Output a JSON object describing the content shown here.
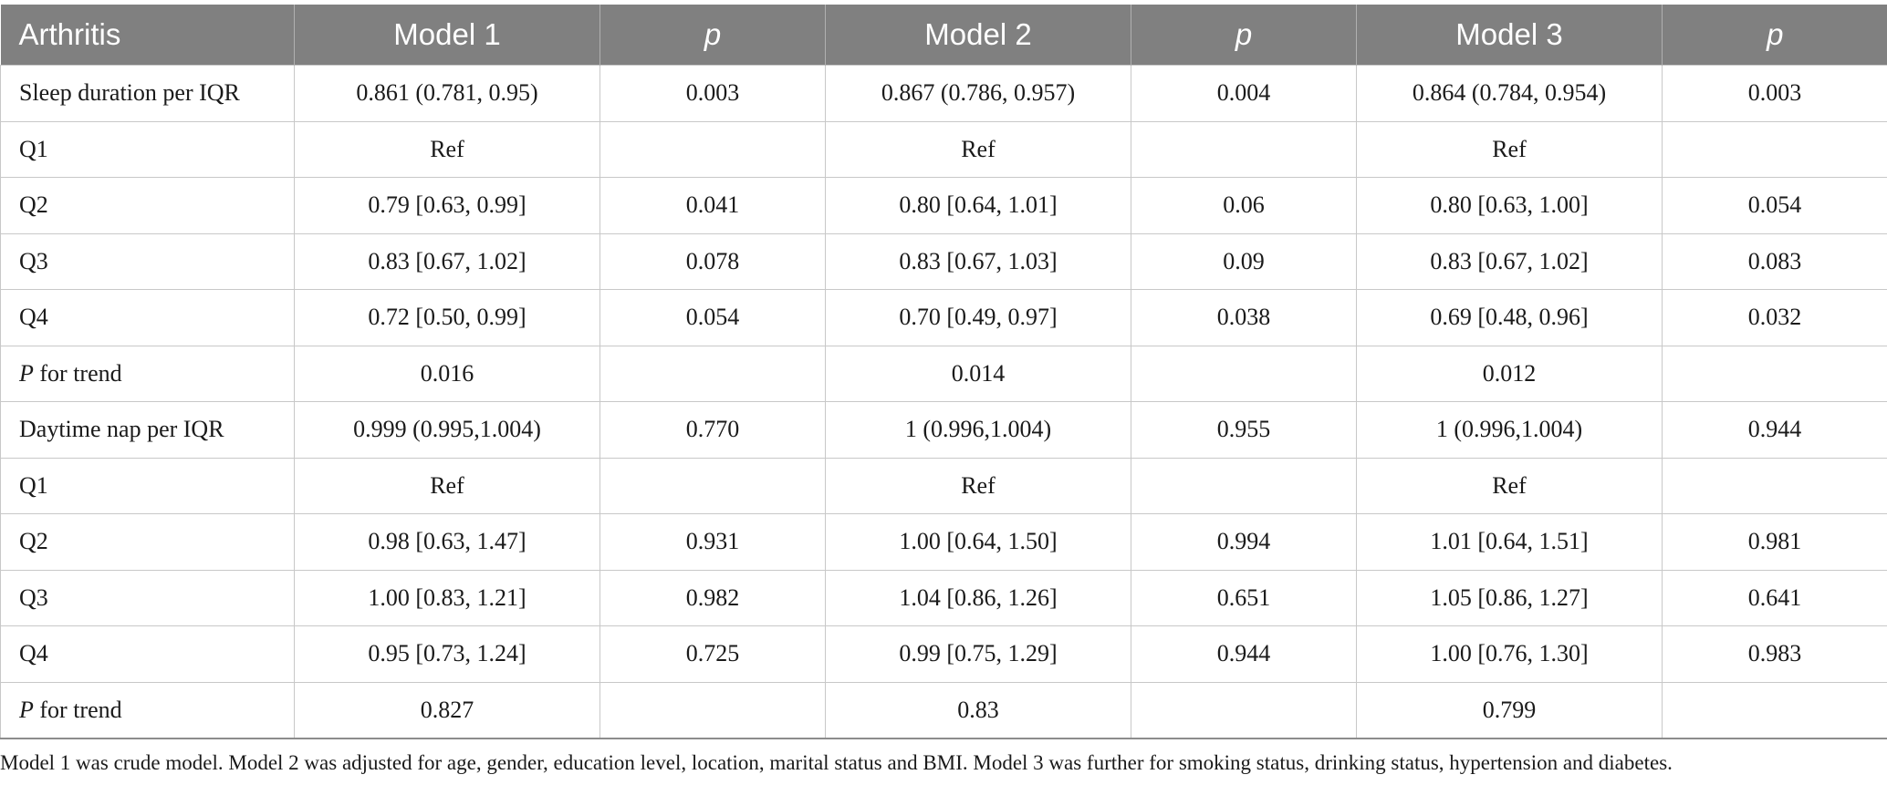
{
  "table": {
    "headers": [
      "Arthritis",
      "Model 1",
      "p",
      "Model 2",
      "p",
      "Model 3",
      "p"
    ],
    "rows": [
      {
        "label": "Sleep duration per IQR",
        "cells": [
          "0.861 (0.781, 0.95)",
          "0.003",
          "0.867 (0.786, 0.957)",
          "0.004",
          "0.864 (0.784, 0.954)",
          "0.003"
        ]
      },
      {
        "label": "Q1",
        "cells": [
          "Ref",
          "",
          "Ref",
          "",
          "Ref",
          ""
        ]
      },
      {
        "label": "Q2",
        "cells": [
          "0.79 [0.63, 0.99]",
          "0.041",
          "0.80 [0.64, 1.01]",
          "0.06",
          "0.80 [0.63, 1.00]",
          "0.054"
        ]
      },
      {
        "label": "Q3",
        "cells": [
          "0.83 [0.67, 1.02]",
          "0.078",
          "0.83 [0.67, 1.03]",
          "0.09",
          "0.83 [0.67, 1.02]",
          "0.083"
        ]
      },
      {
        "label": "Q4",
        "cells": [
          "0.72 [0.50, 0.99]",
          "0.054",
          "0.70 [0.49, 0.97]",
          "0.038",
          "0.69 [0.48, 0.96]",
          "0.032"
        ]
      },
      {
        "label_italic": "P",
        "label": " for trend",
        "cells": [
          "0.016",
          "",
          "0.014",
          "",
          "0.012",
          ""
        ]
      },
      {
        "label": "Daytime nap per IQR",
        "cells": [
          "0.999 (0.995,1.004)",
          "0.770",
          "1 (0.996,1.004)",
          "0.955",
          "1 (0.996,1.004)",
          "0.944"
        ]
      },
      {
        "label": "Q1",
        "cells": [
          "Ref",
          "",
          "Ref",
          "",
          "Ref",
          ""
        ]
      },
      {
        "label": "Q2",
        "cells": [
          "0.98 [0.63, 1.47]",
          "0.931",
          "1.00 [0.64, 1.50]",
          "0.994",
          "1.01 [0.64, 1.51]",
          "0.981"
        ]
      },
      {
        "label": "Q3",
        "cells": [
          "1.00 [0.83, 1.21]",
          "0.982",
          "1.04 [0.86, 1.26]",
          "0.651",
          "1.05 [0.86, 1.27]",
          "0.641"
        ]
      },
      {
        "label": "Q4",
        "cells": [
          "0.95 [0.73, 1.24]",
          "0.725",
          "0.99 [0.75, 1.29]",
          "0.944",
          "1.00 [0.76, 1.30]",
          "0.983"
        ]
      },
      {
        "label_italic": "P",
        "label": " for trend",
        "cells": [
          "0.827",
          "",
          "0.83",
          "",
          "0.799",
          ""
        ]
      }
    ]
  },
  "footnote": "Model 1 was crude model. Model 2 was adjusted for age, gender, education level, location, marital status and BMI. Model 3 was further for smoking status, drinking status, hypertension and diabetes.",
  "colors": {
    "header_bg": "#808080",
    "header_text": "#ffffff",
    "grid": "#c8c8c8"
  }
}
